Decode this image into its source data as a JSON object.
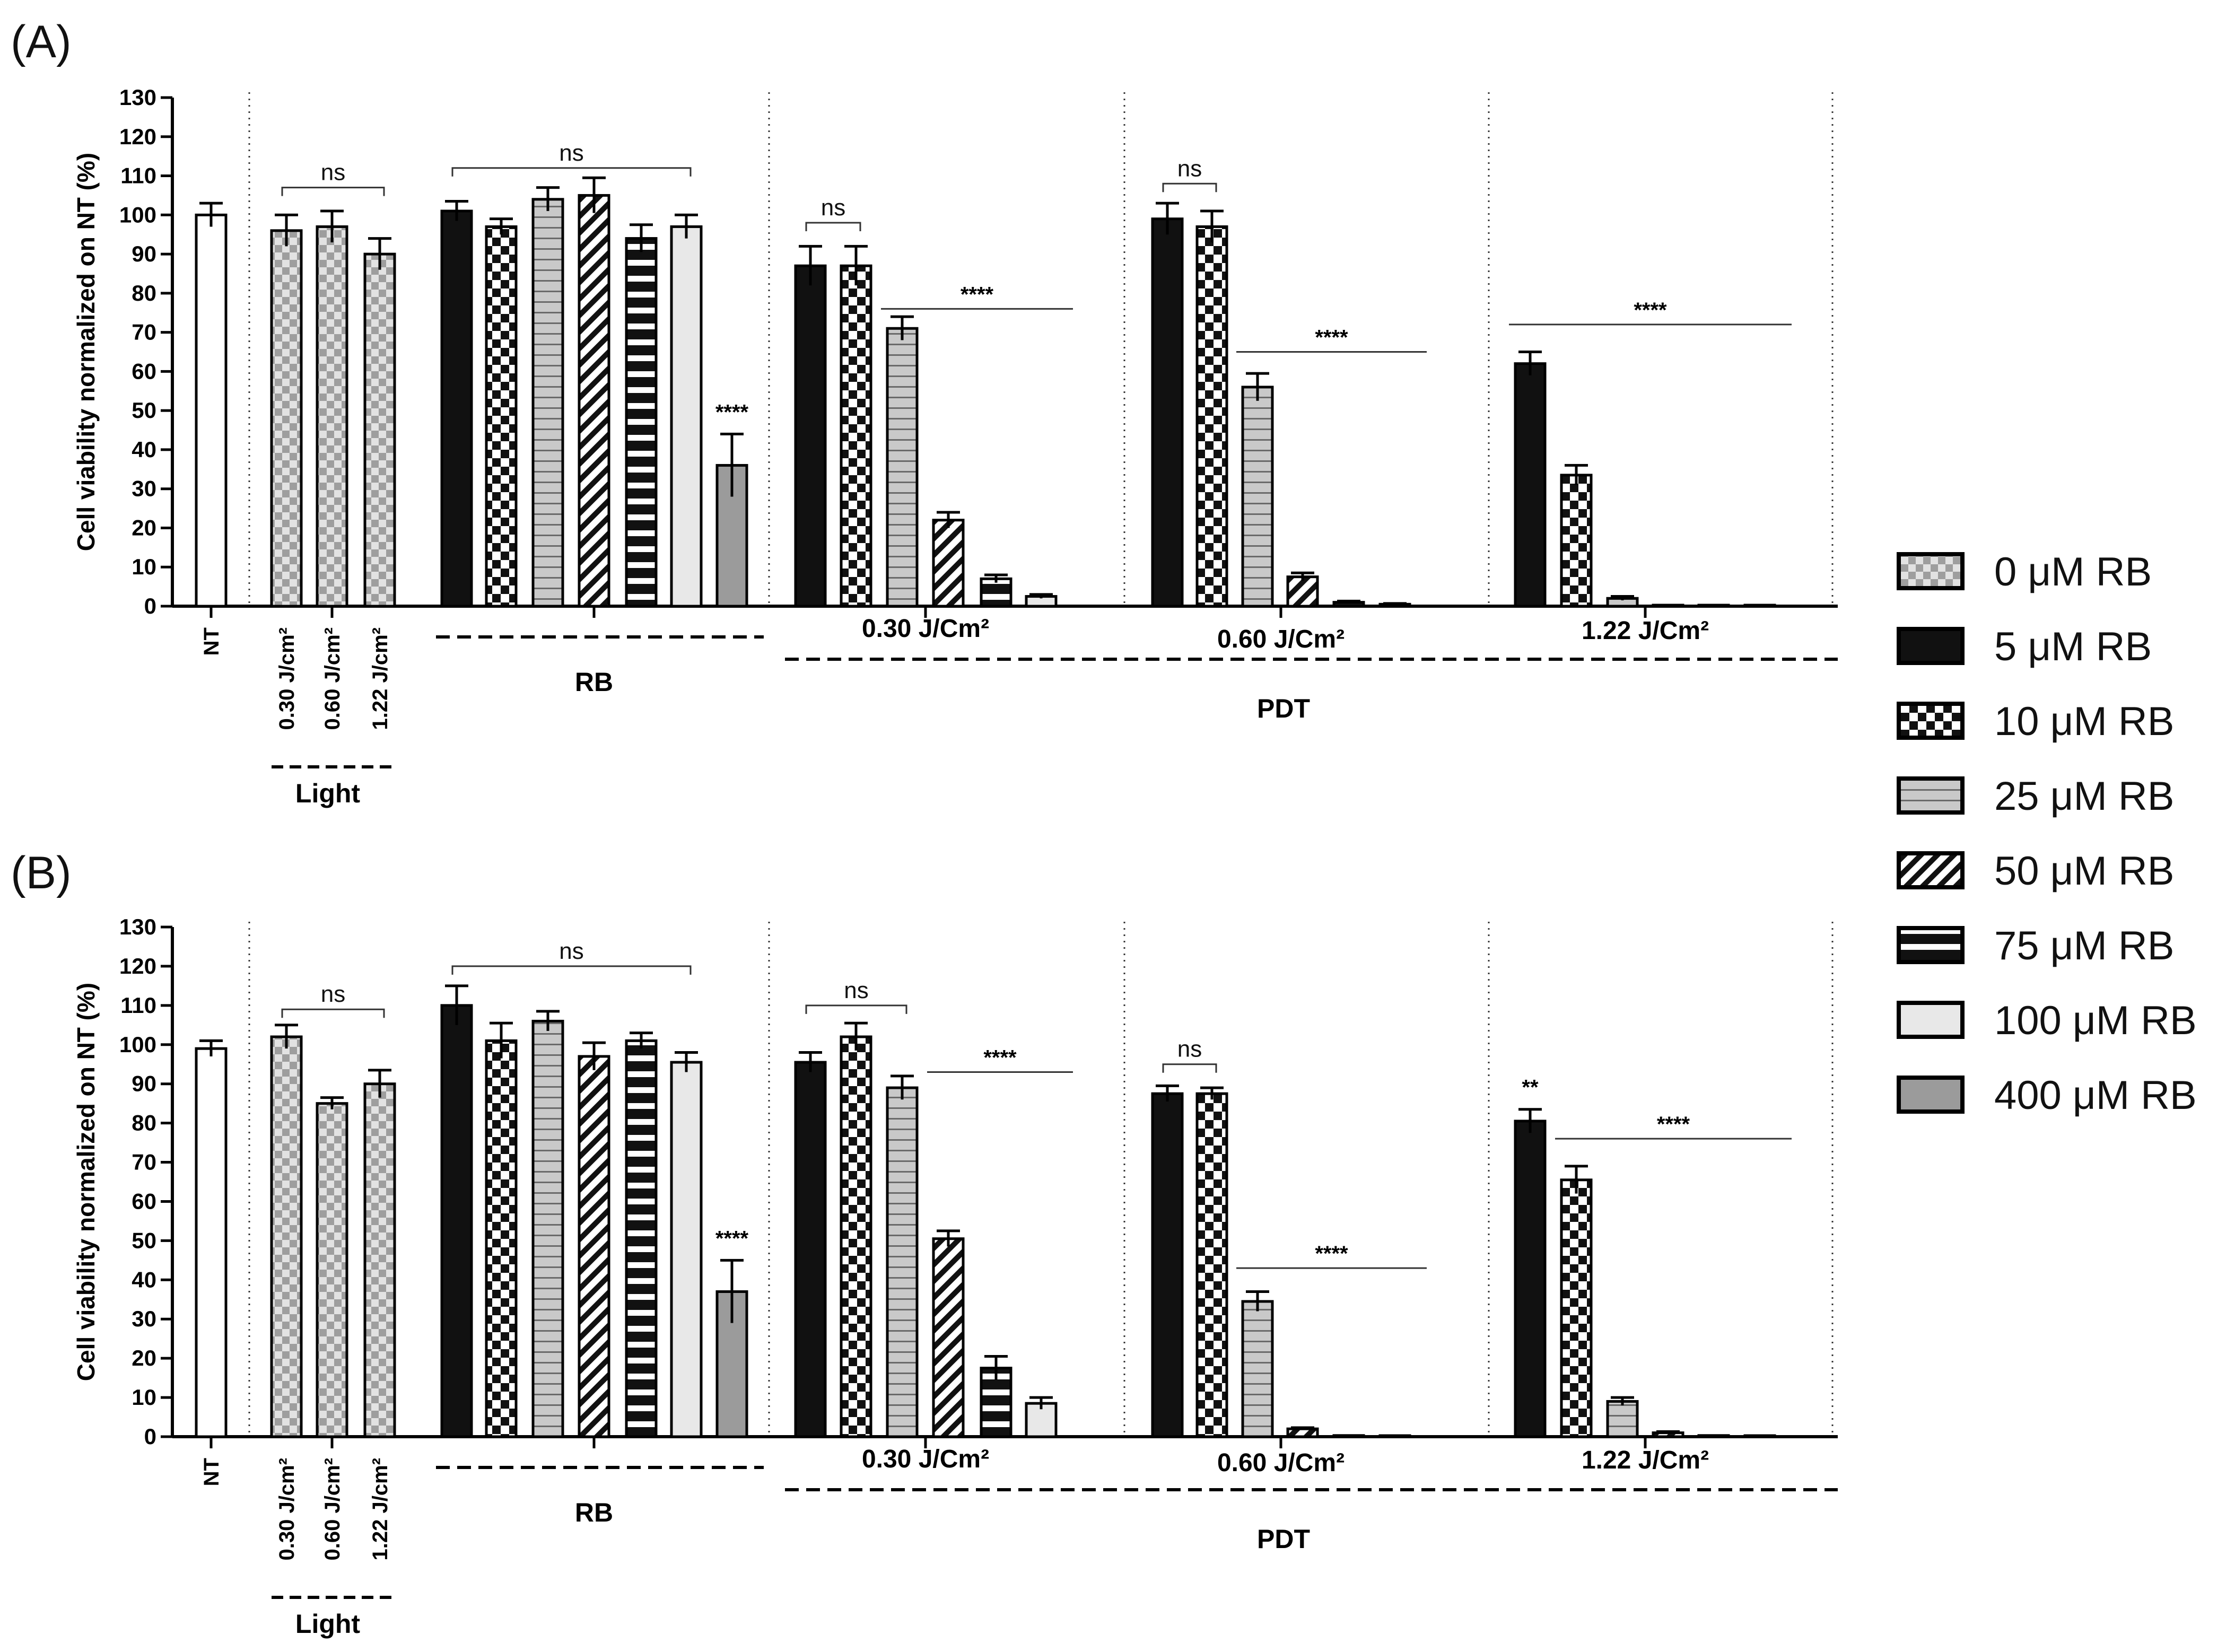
{
  "chart_data": [
    {
      "type": "bar",
      "panel_label": "(A)",
      "ylabel": "Cell viability normalized on NT (%)",
      "ylim": [
        0,
        130
      ],
      "yticks": [
        "0",
        "10",
        "20",
        "30",
        "40",
        "50",
        "60",
        "70",
        "80",
        "90",
        "100",
        "110",
        "120",
        "130"
      ],
      "groups": [
        {
          "name": "NT",
          "bars": [
            {
              "label": "NT",
              "pattern": "none",
              "value": 100,
              "error": 3
            }
          ]
        },
        {
          "name": "Light",
          "bars": [
            {
              "label": "0.30 J/cm²",
              "pattern": "0",
              "value": 96,
              "error": 4
            },
            {
              "label": "0.60 J/cm²",
              "pattern": "0",
              "value": 97,
              "error": 4
            },
            {
              "label": "1.22 J/cm²",
              "pattern": "0",
              "value": 90,
              "error": 4
            }
          ]
        },
        {
          "name": "RB",
          "bars": [
            {
              "pattern": "5",
              "value": 101,
              "error": 2.5
            },
            {
              "pattern": "10",
              "value": 97,
              "error": 2
            },
            {
              "pattern": "25",
              "value": 104,
              "error": 3
            },
            {
              "pattern": "50",
              "value": 105,
              "error": 4.5
            },
            {
              "pattern": "75",
              "value": 94,
              "error": 3.5
            },
            {
              "pattern": "100",
              "value": 97,
              "error": 3
            },
            {
              "pattern": "400",
              "value": 36,
              "error": 8
            }
          ]
        },
        {
          "name": "0.30 J/Cm²",
          "bars": [
            {
              "pattern": "5",
              "value": 87,
              "error": 5
            },
            {
              "pattern": "10",
              "value": 87,
              "error": 5
            },
            {
              "pattern": "25",
              "value": 71,
              "error": 3
            },
            {
              "pattern": "50",
              "value": 22,
              "error": 2
            },
            {
              "pattern": "75",
              "value": 7,
              "error": 1
            },
            {
              "pattern": "100",
              "value": 2.5,
              "error": 0.5
            }
          ]
        },
        {
          "name": "0.60 J/Cm²",
          "bars": [
            {
              "pattern": "5",
              "value": 99,
              "error": 4
            },
            {
              "pattern": "10",
              "value": 97,
              "error": 4
            },
            {
              "pattern": "25",
              "value": 56,
              "error": 3.5
            },
            {
              "pattern": "50",
              "value": 7.5,
              "error": 1
            },
            {
              "pattern": "75",
              "value": 1,
              "error": 0.3
            },
            {
              "pattern": "100",
              "value": 0.5,
              "error": 0.2
            }
          ]
        },
        {
          "name": "1.22 J/Cm²",
          "bars": [
            {
              "pattern": "5",
              "value": 62,
              "error": 3
            },
            {
              "pattern": "10",
              "value": 33.5,
              "error": 2.5
            },
            {
              "pattern": "25",
              "value": 2,
              "error": 0.5
            },
            {
              "pattern": "50",
              "value": 0.2,
              "error": 0
            },
            {
              "pattern": "75",
              "value": 0.2,
              "error": 0
            },
            {
              "pattern": "100",
              "value": 0.2,
              "error": 0
            }
          ]
        }
      ],
      "brackets": [
        {
          "label": "ns",
          "from": [
            1,
            0
          ],
          "to": [
            1,
            2
          ],
          "at": 107
        },
        {
          "label": "ns",
          "from": [
            2,
            0
          ],
          "to": [
            2,
            5
          ],
          "at": 112
        },
        {
          "label": "ns",
          "from": [
            3,
            0
          ],
          "to": [
            3,
            1
          ],
          "at": 98
        },
        {
          "label": "ns",
          "from": [
            4,
            0
          ],
          "to": [
            4,
            1
          ],
          "at": 108
        }
      ],
      "lines": [
        {
          "label": "****",
          "from": [
            3,
            2
          ],
          "to": [
            3,
            5
          ],
          "at": 76
        },
        {
          "label": "****",
          "from": [
            4,
            2
          ],
          "to": [
            4,
            5
          ],
          "at": 65
        },
        {
          "label": "****",
          "from": [
            5,
            0
          ],
          "to": [
            5,
            5
          ],
          "at": 72
        }
      ],
      "bar_stars": [
        {
          "group": 2,
          "bar": 6,
          "label": "****"
        }
      ],
      "group_labels": {
        "light": "Light",
        "rb": "RB",
        "pdt": "PDT",
        "nt": "NT"
      }
    },
    {
      "type": "bar",
      "panel_label": "(B)",
      "ylabel": "Cell viability normalized on NT (%)",
      "ylim": [
        0,
        130
      ],
      "yticks": [
        "0",
        "10",
        "20",
        "30",
        "40",
        "50",
        "60",
        "70",
        "80",
        "90",
        "100",
        "110",
        "120",
        "130"
      ],
      "groups": [
        {
          "name": "NT",
          "bars": [
            {
              "label": "NT",
              "pattern": "none",
              "value": 99,
              "error": 2
            }
          ]
        },
        {
          "name": "Light",
          "bars": [
            {
              "label": "0.30 J/cm²",
              "pattern": "0",
              "value": 102,
              "error": 3
            },
            {
              "label": "0.60 J/cm²",
              "pattern": "0",
              "value": 85,
              "error": 1.5
            },
            {
              "label": "1.22 J/cm²",
              "pattern": "0",
              "value": 90,
              "error": 3.5
            }
          ]
        },
        {
          "name": "RB",
          "bars": [
            {
              "pattern": "5",
              "value": 110,
              "error": 5
            },
            {
              "pattern": "10",
              "value": 101,
              "error": 4.5
            },
            {
              "pattern": "25",
              "value": 106,
              "error": 2.5
            },
            {
              "pattern": "50",
              "value": 97,
              "error": 3.5
            },
            {
              "pattern": "75",
              "value": 101,
              "error": 2
            },
            {
              "pattern": "100",
              "value": 95.5,
              "error": 2.5
            },
            {
              "pattern": "400",
              "value": 37,
              "error": 8
            }
          ]
        },
        {
          "name": "0.30 J/Cm²",
          "bars": [
            {
              "pattern": "5",
              "value": 95.5,
              "error": 2.5
            },
            {
              "pattern": "10",
              "value": 102,
              "error": 3.5
            },
            {
              "pattern": "25",
              "value": 89,
              "error": 3
            },
            {
              "pattern": "50",
              "value": 50.5,
              "error": 2
            },
            {
              "pattern": "75",
              "value": 17.5,
              "error": 3
            },
            {
              "pattern": "100",
              "value": 8.5,
              "error": 1.5
            }
          ]
        },
        {
          "name": "0.60 J/Cm²",
          "bars": [
            {
              "pattern": "5",
              "value": 87.5,
              "error": 2
            },
            {
              "pattern": "10",
              "value": 87.5,
              "error": 1.5
            },
            {
              "pattern": "25",
              "value": 34.5,
              "error": 2.5
            },
            {
              "pattern": "50",
              "value": 2,
              "error": 0.3
            },
            {
              "pattern": "75",
              "value": 0.3,
              "error": 0
            },
            {
              "pattern": "100",
              "value": 0.2,
              "error": 0
            }
          ]
        },
        {
          "name": "1.22 J/Cm²",
          "bars": [
            {
              "pattern": "5",
              "value": 80.5,
              "error": 3
            },
            {
              "pattern": "10",
              "value": 65.5,
              "error": 3.5
            },
            {
              "pattern": "25",
              "value": 9,
              "error": 1
            },
            {
              "pattern": "50",
              "value": 1,
              "error": 0.3
            },
            {
              "pattern": "75",
              "value": 0.3,
              "error": 0
            },
            {
              "pattern": "100",
              "value": 0.2,
              "error": 0
            }
          ]
        }
      ],
      "brackets": [
        {
          "label": "ns",
          "from": [
            1,
            0
          ],
          "to": [
            1,
            2
          ],
          "at": 109
        },
        {
          "label": "ns",
          "from": [
            2,
            0
          ],
          "to": [
            2,
            5
          ],
          "at": 120
        },
        {
          "label": "ns",
          "from": [
            3,
            0
          ],
          "to": [
            3,
            2
          ],
          "at": 110
        },
        {
          "label": "ns",
          "from": [
            4,
            0
          ],
          "to": [
            4,
            1
          ],
          "at": 95
        }
      ],
      "lines": [
        {
          "label": "****",
          "from": [
            3,
            3
          ],
          "to": [
            3,
            5
          ],
          "at": 93
        },
        {
          "label": "****",
          "from": [
            4,
            2
          ],
          "to": [
            4,
            5
          ],
          "at": 43
        },
        {
          "label": "****",
          "from": [
            5,
            1
          ],
          "to": [
            5,
            5
          ],
          "at": 76
        }
      ],
      "bar_stars": [
        {
          "group": 2,
          "bar": 6,
          "label": "****"
        },
        {
          "group": 5,
          "bar": 0,
          "label": "**"
        }
      ],
      "group_labels": {
        "light": "Light",
        "rb": "RB",
        "pdt": "PDT",
        "nt": "NT"
      }
    }
  ],
  "legend": {
    "position": "right",
    "entries": [
      {
        "label": "0 μM RB",
        "pattern": "0"
      },
      {
        "label": "5 μM RB",
        "pattern": "5"
      },
      {
        "label": "10 μM RB",
        "pattern": "10"
      },
      {
        "label": "25 μM RB",
        "pattern": "25"
      },
      {
        "label": "50 μM RB",
        "pattern": "50"
      },
      {
        "label": "75 μM RB",
        "pattern": "75"
      },
      {
        "label": "100 μM RB",
        "pattern": "100"
      },
      {
        "label": "400 μM RB",
        "pattern": "400"
      }
    ]
  }
}
